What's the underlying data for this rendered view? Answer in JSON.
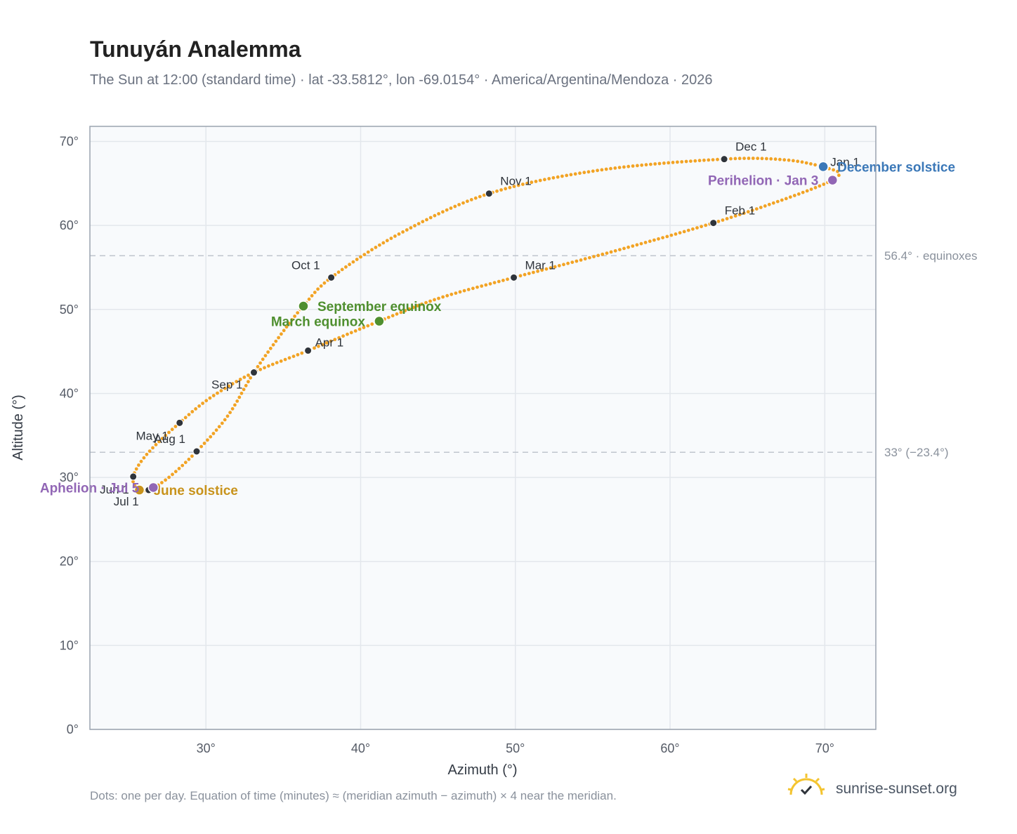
{
  "title": "Tunuyán Analemma",
  "subtitle": "The Sun at 12:00 (standard time) · lat -33.5812°, lon -69.0154° · America/Argentina/Mendoza · 2026",
  "footnote": "Dots: one per day. Equation of time (minutes) ≈ (meridian azimuth − azimuth) × 4 near the meridian.",
  "brand": {
    "name": "sunrise-sunset.org",
    "logo_icon": "sun-check-icon"
  },
  "colors": {
    "curve": "#f2a324",
    "month_dot": "#2f343b",
    "equinox": "#4f8f2f",
    "december_solstice": "#3b78b8",
    "june_solstice": "#c8931c",
    "apsis": "#9166b5",
    "plot_bg": "#f8fafc",
    "grid": "#e3e7ec",
    "frame": "#9aa3af",
    "ref_line": "#bfc5ce"
  },
  "chart_data": {
    "type": "scatter",
    "xlabel": "Azimuth (°)",
    "ylabel": "Altitude (°)",
    "xlim": [
      22.5,
      73.3
    ],
    "ylim": [
      0,
      71.8
    ],
    "xticks": [
      {
        "value": 30,
        "label": "30°"
      },
      {
        "value": 40,
        "label": "40°"
      },
      {
        "value": 50,
        "label": "50°"
      },
      {
        "value": 60,
        "label": "60°"
      },
      {
        "value": 70,
        "label": "70°"
      }
    ],
    "yticks": [
      {
        "value": 0,
        "label": "0°"
      },
      {
        "value": 10,
        "label": "10°"
      },
      {
        "value": 20,
        "label": "20°"
      },
      {
        "value": 30,
        "label": "30°"
      },
      {
        "value": 40,
        "label": "40°"
      },
      {
        "value": 50,
        "label": "50°"
      },
      {
        "value": 60,
        "label": "60°"
      },
      {
        "value": 70,
        "label": "70°"
      }
    ],
    "grid": true,
    "reference_lines": [
      {
        "y": 56.4,
        "label": "56.4° · equinoxes"
      },
      {
        "y": 33.0,
        "label": "33° (−23.4°)"
      }
    ],
    "month_points": [
      {
        "label": "Jan 1",
        "x": 70.0,
        "y": 66.9
      },
      {
        "label": "Feb 1",
        "x": 62.8,
        "y": 60.3
      },
      {
        "label": "Mar 1",
        "x": 49.9,
        "y": 53.8
      },
      {
        "label": "Apr 1",
        "x": 36.6,
        "y": 45.1
      },
      {
        "label": "May 1",
        "x": 28.3,
        "y": 36.5
      },
      {
        "label": "Jun 1",
        "x": 25.3,
        "y": 30.1
      },
      {
        "label": "Jul 1",
        "x": 26.3,
        "y": 28.5
      },
      {
        "label": "Aug 1",
        "x": 29.4,
        "y": 33.1
      },
      {
        "label": "Sep 1",
        "x": 33.1,
        "y": 42.5
      },
      {
        "label": "Oct 1",
        "x": 38.1,
        "y": 53.8
      },
      {
        "label": "Nov 1",
        "x": 48.3,
        "y": 63.8
      },
      {
        "label": "Dec 1",
        "x": 63.5,
        "y": 67.9
      }
    ],
    "events": [
      {
        "label": "March equinox",
        "x": 41.2,
        "y": 48.6,
        "color_key": "equinox"
      },
      {
        "label": "September equinox",
        "x": 36.3,
        "y": 50.4,
        "color_key": "equinox"
      },
      {
        "label": "December solstice",
        "x": 69.9,
        "y": 67.0,
        "color_key": "december_solstice"
      },
      {
        "label": "June solstice",
        "x": 25.7,
        "y": 28.5,
        "color_key": "june_solstice"
      },
      {
        "label": "Perihelion · Jan 3",
        "x": 70.5,
        "y": 65.4,
        "color_key": "apsis"
      },
      {
        "label": "Aphelion · Jul 5",
        "x": 26.6,
        "y": 28.8,
        "color_key": "apsis"
      }
    ],
    "curve_path": [
      {
        "x": 70.0,
        "y": 66.9
      },
      {
        "x": 70.9,
        "y": 66.3
      },
      {
        "x": 70.4,
        "y": 65.3
      },
      {
        "x": 67.5,
        "y": 63.2
      },
      {
        "x": 62.8,
        "y": 60.3
      },
      {
        "x": 56.5,
        "y": 57.0
      },
      {
        "x": 49.9,
        "y": 53.8
      },
      {
        "x": 45.0,
        "y": 51.3
      },
      {
        "x": 41.2,
        "y": 48.6
      },
      {
        "x": 36.6,
        "y": 45.1
      },
      {
        "x": 33.1,
        "y": 42.5
      },
      {
        "x": 30.3,
        "y": 39.5
      },
      {
        "x": 28.3,
        "y": 36.5
      },
      {
        "x": 26.2,
        "y": 32.8
      },
      {
        "x": 25.3,
        "y": 30.1
      },
      {
        "x": 25.6,
        "y": 28.6
      },
      {
        "x": 26.3,
        "y": 28.5
      },
      {
        "x": 27.6,
        "y": 30.0
      },
      {
        "x": 29.4,
        "y": 33.1
      },
      {
        "x": 31.4,
        "y": 37.3
      },
      {
        "x": 33.1,
        "y": 42.5
      },
      {
        "x": 35.0,
        "y": 47.4
      },
      {
        "x": 36.3,
        "y": 50.4
      },
      {
        "x": 38.1,
        "y": 53.8
      },
      {
        "x": 42.5,
        "y": 59.0
      },
      {
        "x": 48.3,
        "y": 63.8
      },
      {
        "x": 55.5,
        "y": 66.6
      },
      {
        "x": 63.5,
        "y": 67.9
      },
      {
        "x": 67.5,
        "y": 67.8
      },
      {
        "x": 69.9,
        "y": 67.0
      },
      {
        "x": 70.0,
        "y": 66.9
      }
    ]
  }
}
